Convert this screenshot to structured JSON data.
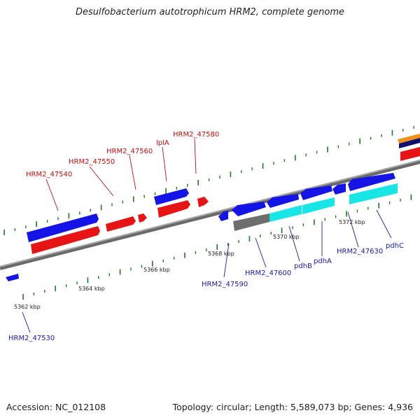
{
  "title": "Desulfobacterium autotrophicum HRM2, complete genome",
  "footer": {
    "accession": "Accession: NC_012108",
    "summary": "Topology: circular; Length: 5,589,073 bp; Genes: 4,936"
  },
  "colors": {
    "backbone": "#8a8a8a",
    "tick": "#1f7a1f",
    "plus_strand_gene": "#1414e6",
    "minus_strand_gene": "#e61414",
    "blue_label": "#1a1aa6",
    "red_label": "#c01010",
    "grey_feature": "#6e6e6e",
    "cyan_feature": "#18e6e6",
    "orange_feature": "#f0901c",
    "navy_feature": "#101070"
  },
  "axis": {
    "unit": "kbp",
    "tick_labels": [
      "5362 kbp",
      "5364 kbp",
      "5366 kbp",
      "5368 kbp",
      "5370 kbp",
      "5372 kbp"
    ]
  },
  "upper_labels": [
    "HRM2_47540",
    "HRM2_47550",
    "HRM2_47560",
    "lplA",
    "HRM2_47580"
  ],
  "lower_labels": [
    "HRM2_47530",
    "HRM2_47590",
    "HRM2_47600",
    "pdhB",
    "pdhA",
    "HRM2_47630",
    "pdhC"
  ]
}
